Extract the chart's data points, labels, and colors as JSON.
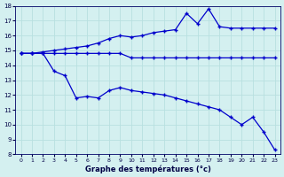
{
  "title": "Graphe des températures (°c)",
  "bg_color": "#d4f0f0",
  "grid_color": "#b8e0e0",
  "line_color": "#0000cc",
  "ylim": [
    8,
    18
  ],
  "xlim": [
    -0.5,
    23.5
  ],
  "yticks": [
    8,
    9,
    10,
    11,
    12,
    13,
    14,
    15,
    16,
    17,
    18
  ],
  "xticks": [
    0,
    1,
    2,
    3,
    4,
    5,
    6,
    7,
    8,
    9,
    10,
    11,
    12,
    13,
    14,
    15,
    16,
    17,
    18,
    19,
    20,
    21,
    22,
    23
  ],
  "series_max": {
    "x": [
      0,
      1,
      2,
      3,
      4,
      5,
      6,
      7,
      8,
      9,
      10,
      11,
      12,
      13,
      14,
      15,
      16,
      17,
      18,
      19,
      20,
      21,
      22,
      23
    ],
    "y": [
      14.8,
      14.8,
      14.9,
      15.0,
      15.1,
      15.2,
      15.3,
      15.5,
      15.8,
      16.0,
      15.9,
      16.0,
      16.2,
      16.3,
      16.4,
      17.5,
      16.8,
      17.8,
      16.6,
      16.5,
      16.5,
      16.5,
      16.5,
      16.5
    ]
  },
  "series_avg": {
    "x": [
      0,
      1,
      2,
      3,
      4,
      5,
      6,
      7,
      8,
      9,
      10,
      11,
      12,
      13,
      14,
      15,
      16,
      17,
      18,
      19,
      20,
      21,
      22,
      23
    ],
    "y": [
      14.8,
      14.8,
      14.8,
      14.8,
      14.8,
      14.8,
      14.8,
      14.8,
      14.8,
      14.8,
      14.5,
      14.5,
      14.5,
      14.5,
      14.5,
      14.5,
      14.5,
      14.5,
      14.5,
      14.5,
      14.5,
      14.5,
      14.5,
      14.5
    ]
  },
  "series_min": {
    "x": [
      0,
      1,
      2,
      3,
      4,
      5,
      6,
      7,
      8,
      9,
      10,
      11,
      12,
      13,
      14,
      15,
      16,
      17,
      18,
      19,
      20,
      21,
      22,
      23
    ],
    "y": [
      14.8,
      14.8,
      14.8,
      13.6,
      13.3,
      11.8,
      11.9,
      11.8,
      12.3,
      12.5,
      12.3,
      12.2,
      12.1,
      12.0,
      11.8,
      11.6,
      11.4,
      11.2,
      11.0,
      10.5,
      10.0,
      10.5,
      9.5,
      8.3
    ]
  }
}
